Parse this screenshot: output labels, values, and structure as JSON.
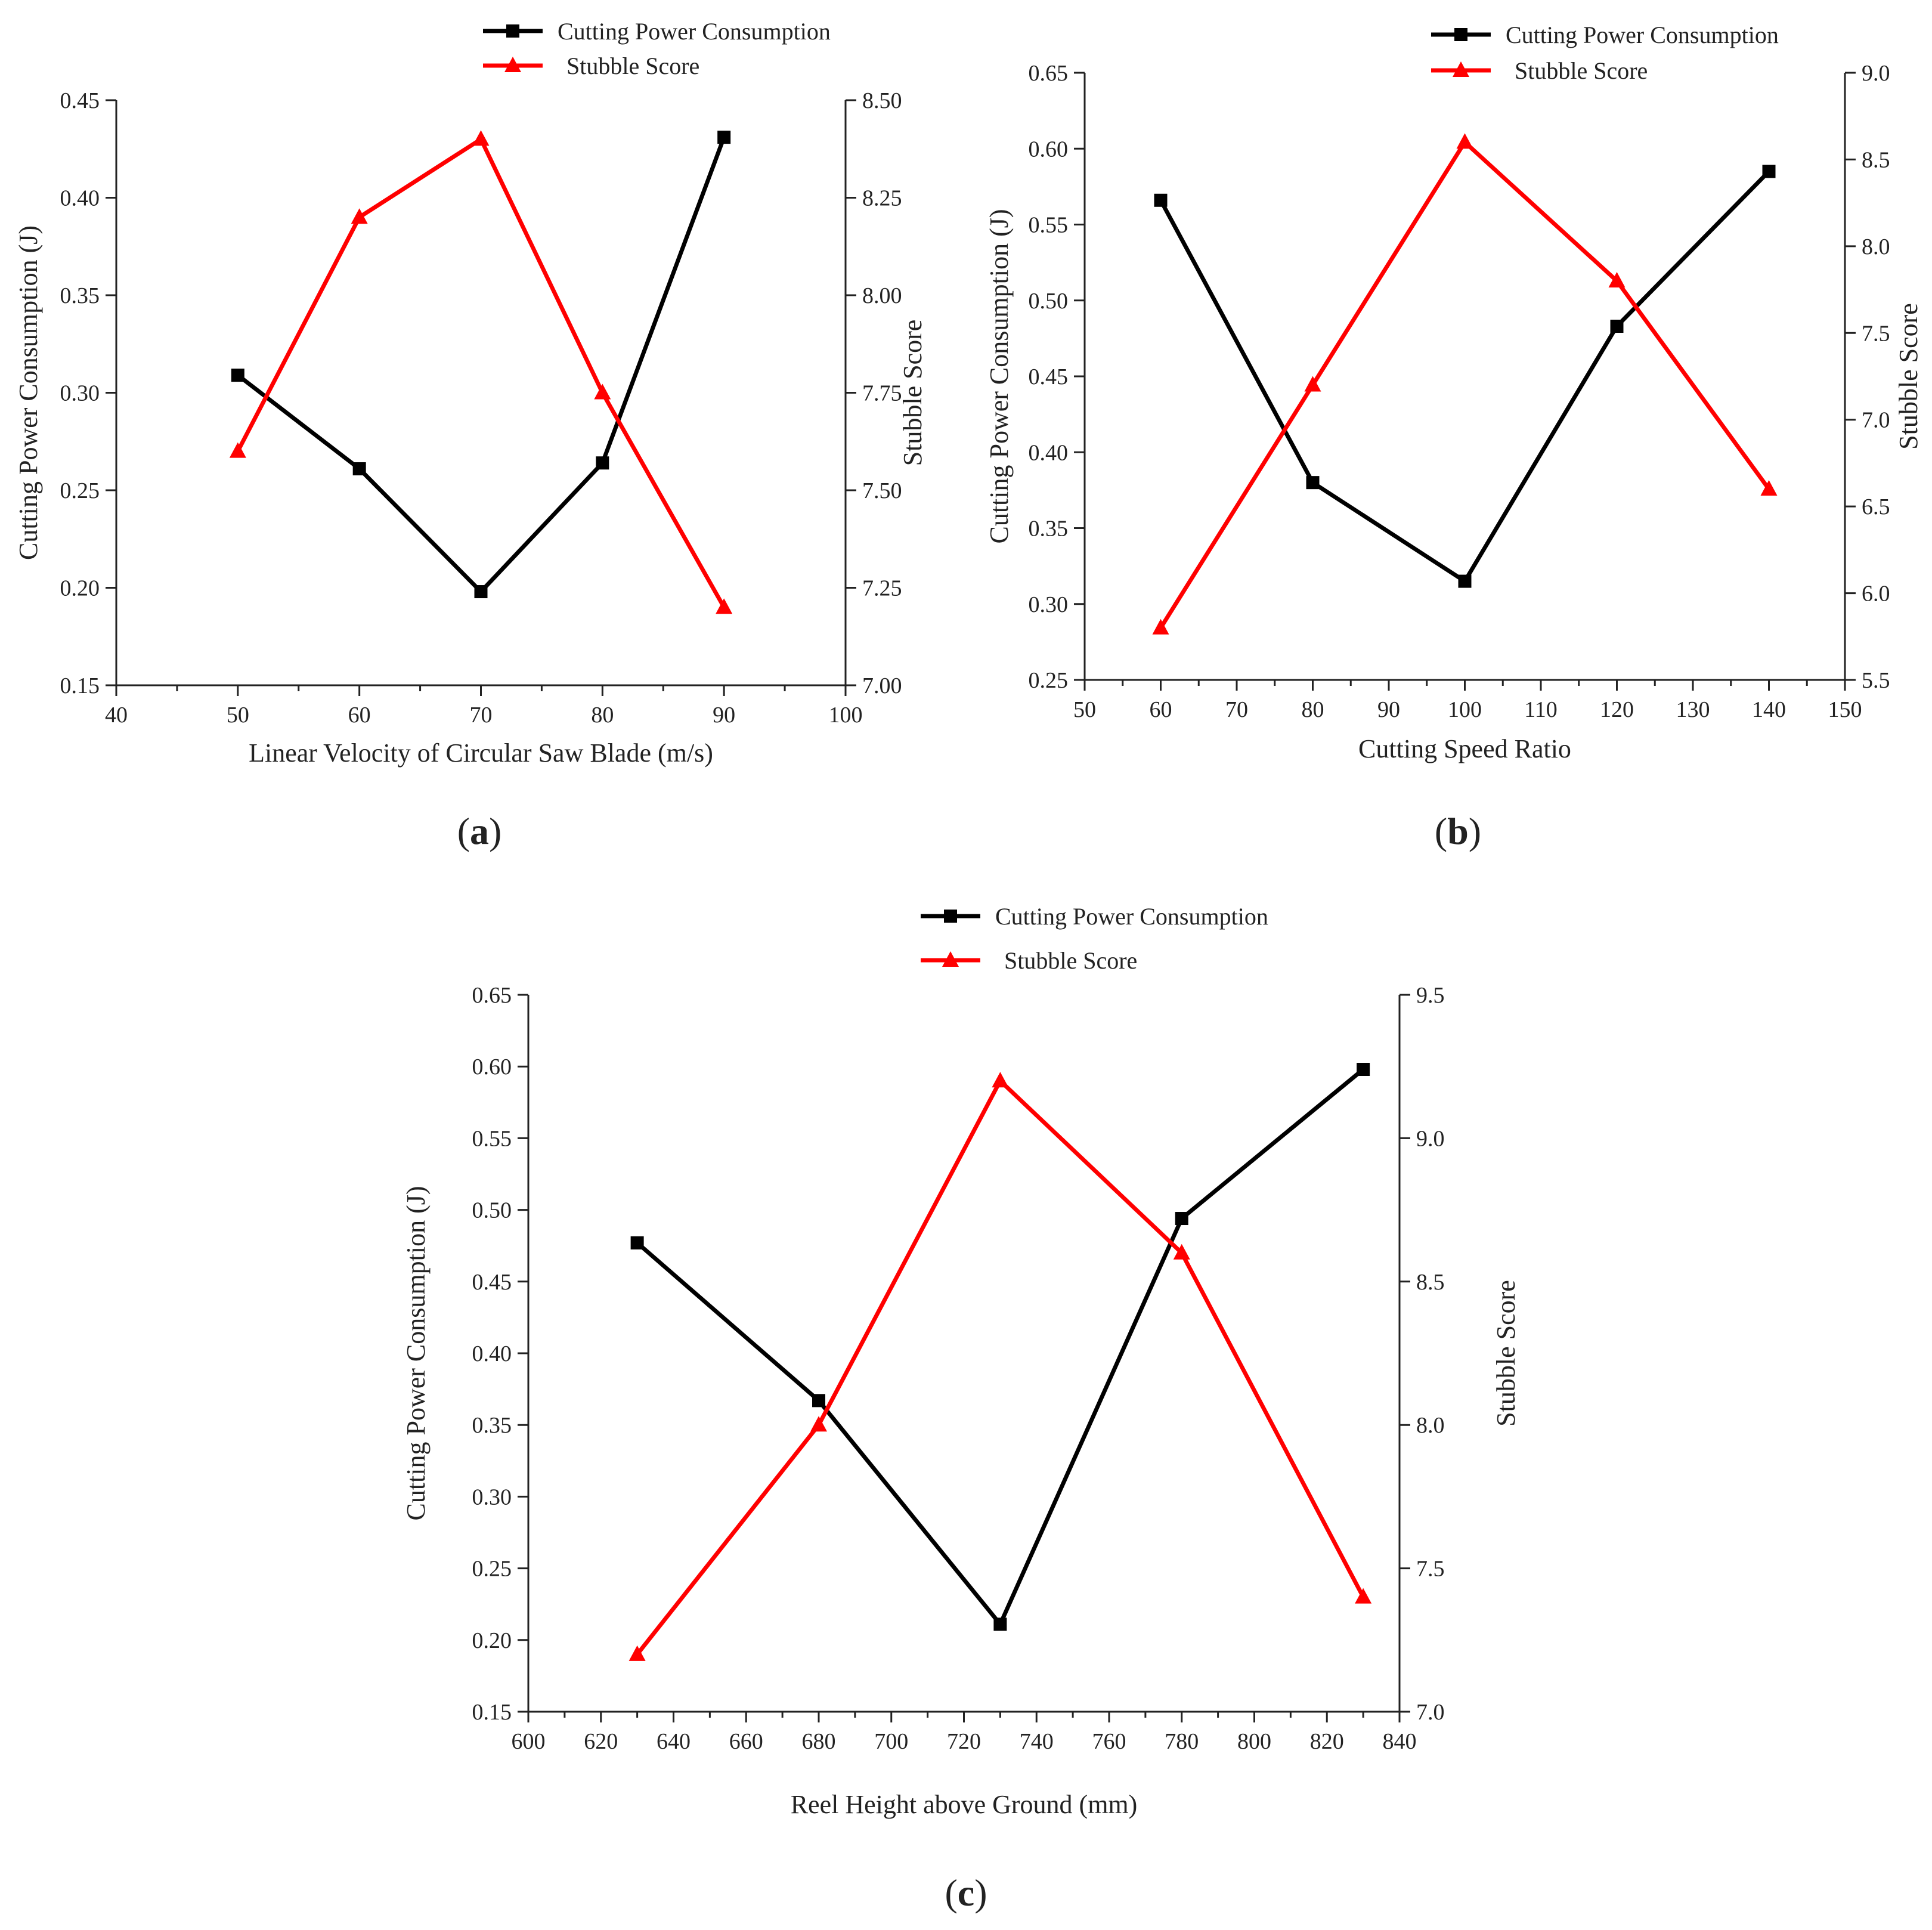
{
  "colors": {
    "power": "#000000",
    "stubble": "#ff0000"
  },
  "chart_data": [
    {
      "id": "a",
      "type": "line",
      "panel_label_parts": [
        "(",
        "a",
        ")"
      ],
      "xlabel": "Linear Velocity of Circular Saw Blade (m/s)",
      "ylabel_left": "Cutting Power Consumption (J)",
      "ylabel_right": "Stubble Score",
      "xlim": [
        40,
        100
      ],
      "xticks": [
        "40",
        "50",
        "60",
        "70",
        "80",
        "90",
        "100"
      ],
      "ylim_left": [
        0.15,
        0.45
      ],
      "yticks_left": [
        "0.15",
        "0.20",
        "0.25",
        "0.30",
        "0.35",
        "0.40",
        "0.45"
      ],
      "ylim_right": [
        7.0,
        8.5
      ],
      "yticks_right": [
        "7.00",
        "7.25",
        "7.50",
        "7.75",
        "8.00",
        "8.25",
        "8.50"
      ],
      "x": [
        50,
        60,
        70,
        80,
        90
      ],
      "series": [
        {
          "name": "Cutting Power Consumption",
          "axis": "left",
          "marker": "square",
          "values": [
            0.309,
            0.261,
            0.198,
            0.264,
            0.431
          ]
        },
        {
          "name": "Stubble Score",
          "axis": "right",
          "marker": "triangle",
          "values": [
            7.6,
            8.2,
            8.4,
            7.75,
            7.2
          ]
        }
      ]
    },
    {
      "id": "b",
      "type": "line",
      "panel_label_parts": [
        "(",
        "b",
        ")"
      ],
      "xlabel": "Cutting Speed Ratio",
      "ylabel_left": "Cutting Power Consumption (J)",
      "ylabel_right": "Stubble Score",
      "xlim": [
        50,
        150
      ],
      "xticks": [
        "50",
        "60",
        "70",
        "80",
        "90",
        "100",
        "110",
        "120",
        "130",
        "140",
        "150"
      ],
      "ylim_left": [
        0.25,
        0.65
      ],
      "yticks_left": [
        "0.25",
        "0.30",
        "0.35",
        "0.40",
        "0.45",
        "0.50",
        "0.55",
        "0.60",
        "0.65"
      ],
      "ylim_right": [
        5.5,
        9.0
      ],
      "yticks_right": [
        "5.5",
        "6.0",
        "6.5",
        "7.0",
        "7.5",
        "8.0",
        "8.5",
        "9.0"
      ],
      "x": [
        60,
        80,
        100,
        120,
        140
      ],
      "series": [
        {
          "name": "Cutting Power Consumption",
          "axis": "left",
          "marker": "square",
          "values": [
            0.566,
            0.38,
            0.315,
            0.483,
            0.585
          ]
        },
        {
          "name": "Stubble Score",
          "axis": "right",
          "marker": "triangle",
          "values": [
            5.8,
            7.2,
            8.6,
            7.8,
            6.6
          ]
        }
      ]
    },
    {
      "id": "c",
      "type": "line",
      "panel_label_parts": [
        "(",
        "c",
        ")"
      ],
      "xlabel": "Reel Height above Ground (mm)",
      "ylabel_left": "Cutting Power Consumption (J)",
      "ylabel_right": "Stubble Score",
      "xlim": [
        600,
        840
      ],
      "xticks": [
        "600",
        "620",
        "640",
        "660",
        "680",
        "700",
        "720",
        "740",
        "760",
        "780",
        "800",
        "820",
        "840"
      ],
      "ylim_left": [
        0.15,
        0.65
      ],
      "yticks_left": [
        "0.15",
        "0.20",
        "0.25",
        "0.30",
        "0.35",
        "0.40",
        "0.45",
        "0.50",
        "0.55",
        "0.60",
        "0.65"
      ],
      "ylim_right": [
        7.0,
        9.5
      ],
      "yticks_right": [
        "7.0",
        "7.5",
        "8.0",
        "8.5",
        "9.0",
        "9.5"
      ],
      "x": [
        630,
        680,
        730,
        780,
        830
      ],
      "series": [
        {
          "name": "Cutting Power Consumption",
          "axis": "left",
          "marker": "square",
          "values": [
            0.477,
            0.367,
            0.211,
            0.494,
            0.598
          ]
        },
        {
          "name": "Stubble Score",
          "axis": "right",
          "marker": "triangle",
          "values": [
            7.2,
            8.0,
            9.2,
            8.6,
            7.4
          ]
        }
      ]
    }
  ]
}
